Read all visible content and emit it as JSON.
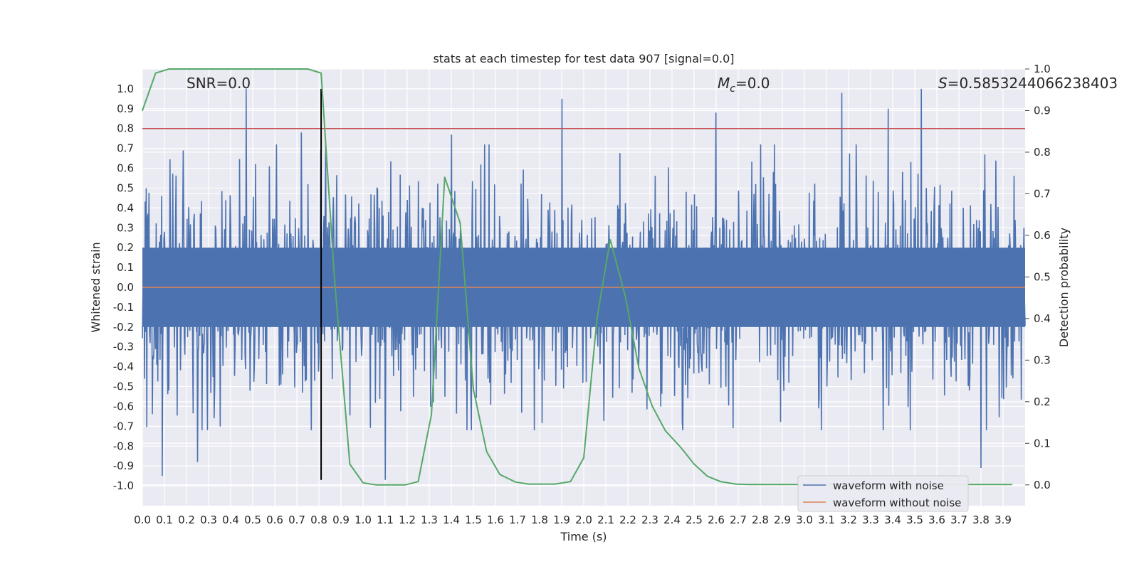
{
  "chart_data": {
    "type": "line",
    "title": "stats at each timestep for test data 907 [signal=0.0]",
    "xlabel": "Time (s)",
    "ylabel": "Whitened strain",
    "y2label": "Detection probability",
    "xlim": [
      0.0,
      4.0
    ],
    "ylim": [
      -1.1,
      1.1
    ],
    "y2lim": [
      -0.05,
      1.0
    ],
    "xticks": [
      "0.0",
      "0.1",
      "0.2",
      "0.3",
      "0.4",
      "0.5",
      "0.6",
      "0.7",
      "0.8",
      "0.9",
      "1.0",
      "1.1",
      "1.2",
      "1.3",
      "1.4",
      "1.5",
      "1.6",
      "1.7",
      "1.8",
      "1.9",
      "2.0",
      "2.1",
      "2.2",
      "2.3",
      "2.4",
      "2.5",
      "2.6",
      "2.7",
      "2.8",
      "2.9",
      "3.0",
      "3.1",
      "3.2",
      "3.3",
      "3.4",
      "3.5",
      "3.6",
      "3.7",
      "3.8",
      "3.9"
    ],
    "yticks": [
      "1.0",
      "0.9",
      "0.8",
      "0.7",
      "0.6",
      "0.5",
      "0.4",
      "0.3",
      "0.2",
      "0.1",
      "0.0",
      "-0.1",
      "-0.2",
      "-0.3",
      "-0.4",
      "-0.5",
      "-0.6",
      "-0.7",
      "-0.8",
      "-0.9",
      "-1.0"
    ],
    "y2ticks": [
      "1.0",
      "0.9",
      "0.8",
      "0.7",
      "0.6",
      "0.5",
      "0.4",
      "0.3",
      "0.2",
      "0.1",
      "0.0"
    ],
    "annotations": {
      "snr": "SNR=0.0",
      "mc_symbol": "M",
      "mc_subscript": "c",
      "mc_value": "=0.0",
      "s_symbol": "S",
      "s_value": "=0.5853244066238403"
    },
    "threshold_y": 0.8,
    "vline_x": 0.81,
    "noise_series": {
      "name": "waveform with noise",
      "color": "#4c72b0",
      "x_range": [
        0.0,
        4.0
      ],
      "core_band": [
        -0.2,
        0.2
      ],
      "typical_extent": [
        -0.5,
        0.5
      ],
      "spikes": [
        {
          "x": 0.09,
          "y": -0.95
        },
        {
          "x": 0.25,
          "y": -0.88
        },
        {
          "x": 0.47,
          "y": 1.0
        },
        {
          "x": 0.72,
          "y": 0.78
        },
        {
          "x": 1.1,
          "y": -0.97
        },
        {
          "x": 1.4,
          "y": 0.77
        },
        {
          "x": 1.9,
          "y": 0.95
        },
        {
          "x": 2.6,
          "y": 0.88
        },
        {
          "x": 3.17,
          "y": 0.98
        },
        {
          "x": 3.38,
          "y": 0.9
        },
        {
          "x": 3.53,
          "y": 1.0
        },
        {
          "x": 3.8,
          "y": -0.91
        }
      ]
    },
    "clean_series": {
      "name": "waveform without noise",
      "color": "#dd8452",
      "value": 0.0
    },
    "probability_series": {
      "color": "#55a868",
      "x": [
        0.0,
        0.06,
        0.12,
        0.19,
        0.25,
        0.31,
        0.37,
        0.44,
        0.5,
        0.56,
        0.62,
        0.69,
        0.75,
        0.81,
        0.87,
        0.94,
        1.0,
        1.06,
        1.12,
        1.19,
        1.25,
        1.31,
        1.37,
        1.44,
        1.5,
        1.56,
        1.62,
        1.69,
        1.75,
        1.81,
        1.87,
        1.94,
        2.0,
        2.06,
        2.12,
        2.19,
        2.25,
        2.31,
        2.37,
        2.44,
        2.5,
        2.56,
        2.62,
        2.69,
        2.75,
        2.81,
        2.87,
        2.94,
        3.0,
        3.06,
        3.12,
        3.19,
        3.25,
        3.31,
        3.37,
        3.44,
        3.5,
        3.56,
        3.62,
        3.69,
        3.75,
        3.81,
        3.87,
        3.94
      ],
      "y": [
        0.9,
        0.99,
        1.0,
        1.0,
        1.0,
        1.0,
        1.0,
        1.0,
        1.0,
        1.0,
        1.0,
        1.0,
        1.0,
        0.99,
        0.5,
        0.05,
        0.005,
        0.0,
        0.0,
        0.0,
        0.008,
        0.17,
        0.74,
        0.63,
        0.23,
        0.08,
        0.025,
        0.007,
        0.002,
        0.002,
        0.002,
        0.008,
        0.065,
        0.4,
        0.59,
        0.45,
        0.28,
        0.19,
        0.13,
        0.09,
        0.05,
        0.021,
        0.008,
        0.002,
        0.001,
        0.001,
        0.001,
        0.001,
        0.001,
        0.001,
        0.001,
        0.001,
        0.001,
        0.001,
        0.001,
        0.001,
        0.001,
        0.001,
        0.001,
        0.001,
        0.001,
        0.001,
        0.001,
        0.001
      ]
    }
  }
}
